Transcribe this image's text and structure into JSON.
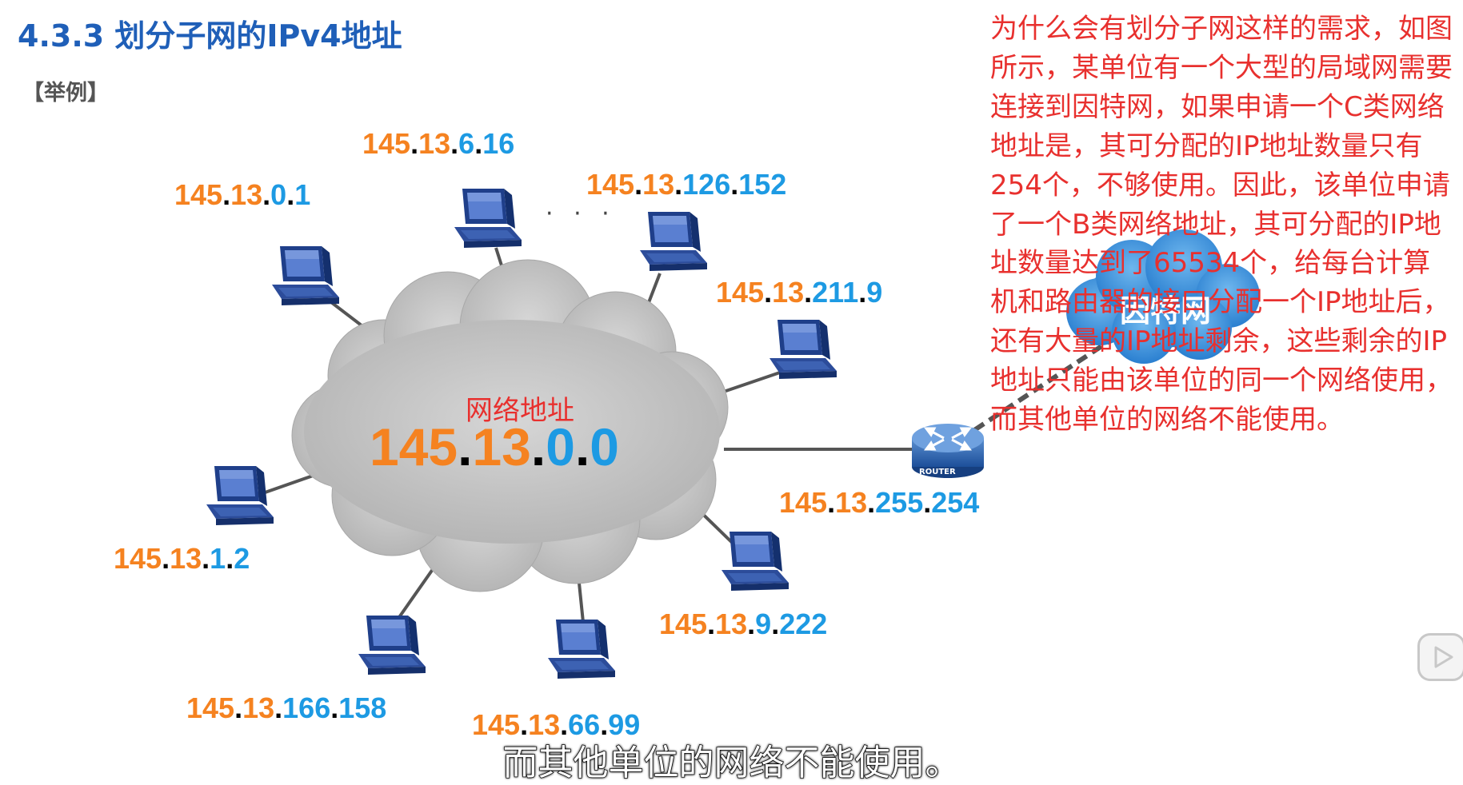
{
  "header": {
    "title": "4.3.3 划分子网的IPv4地址",
    "example_label": "【举例】"
  },
  "diagram": {
    "cloud_label": "网络地址",
    "cloud_address": {
      "network": [
        "145",
        "13"
      ],
      "host": [
        "0",
        "0"
      ]
    },
    "ellipsis": "· · ·",
    "internet_label": "因特网",
    "router_label": "ROUTER",
    "hosts": [
      {
        "name": "host-145-13-0-1",
        "network": [
          "145",
          "13"
        ],
        "host": [
          "0",
          "1"
        ]
      },
      {
        "name": "host-145-13-6-16",
        "network": [
          "145",
          "13"
        ],
        "host": [
          "6",
          "16"
        ]
      },
      {
        "name": "host-145-13-126-152",
        "network": [
          "145",
          "13"
        ],
        "host": [
          "126",
          "152"
        ]
      },
      {
        "name": "host-145-13-211-9",
        "network": [
          "145",
          "13"
        ],
        "host": [
          "211",
          "9"
        ]
      },
      {
        "name": "host-145-13-1-2",
        "network": [
          "145",
          "13"
        ],
        "host": [
          "1",
          "2"
        ]
      },
      {
        "name": "host-145-13-166-158",
        "network": [
          "145",
          "13"
        ],
        "host": [
          "166",
          "158"
        ]
      },
      {
        "name": "host-145-13-66-99",
        "network": [
          "145",
          "13"
        ],
        "host": [
          "66",
          "99"
        ]
      },
      {
        "name": "host-145-13-9-222",
        "network": [
          "145",
          "13"
        ],
        "host": [
          "9",
          "222"
        ]
      },
      {
        "name": "router-145-13-255-254",
        "network": [
          "145",
          "13"
        ],
        "host": [
          "255",
          "254"
        ]
      }
    ]
  },
  "explanation": "为什么会有划分子网这样的需求，如图所示，某单位有一个大型的局域网需要连接到因特网，如果申请一个C类网络地址是，其可分配的IP地址数量只有254个，不够使用。因此，该单位申请了一个B类网络地址，其可分配的IP地址数量达到了65534个，给每台计算机和路由器的接口分配一个IP地址后，还有大量的IP地址剩余，这些剩余的IP地址只能由该单位的同一个网络使用，而其他单位的网络不能使用。",
  "subtitle": "而其他单位的网络不能使用。",
  "colors": {
    "title": "#1f5fb8",
    "network_part": "#f58220",
    "host_part": "#1d9ae3",
    "explanation": "#e8302e",
    "cloud": "#c9c9c9",
    "internet_cloud": "#3b8fd6"
  }
}
